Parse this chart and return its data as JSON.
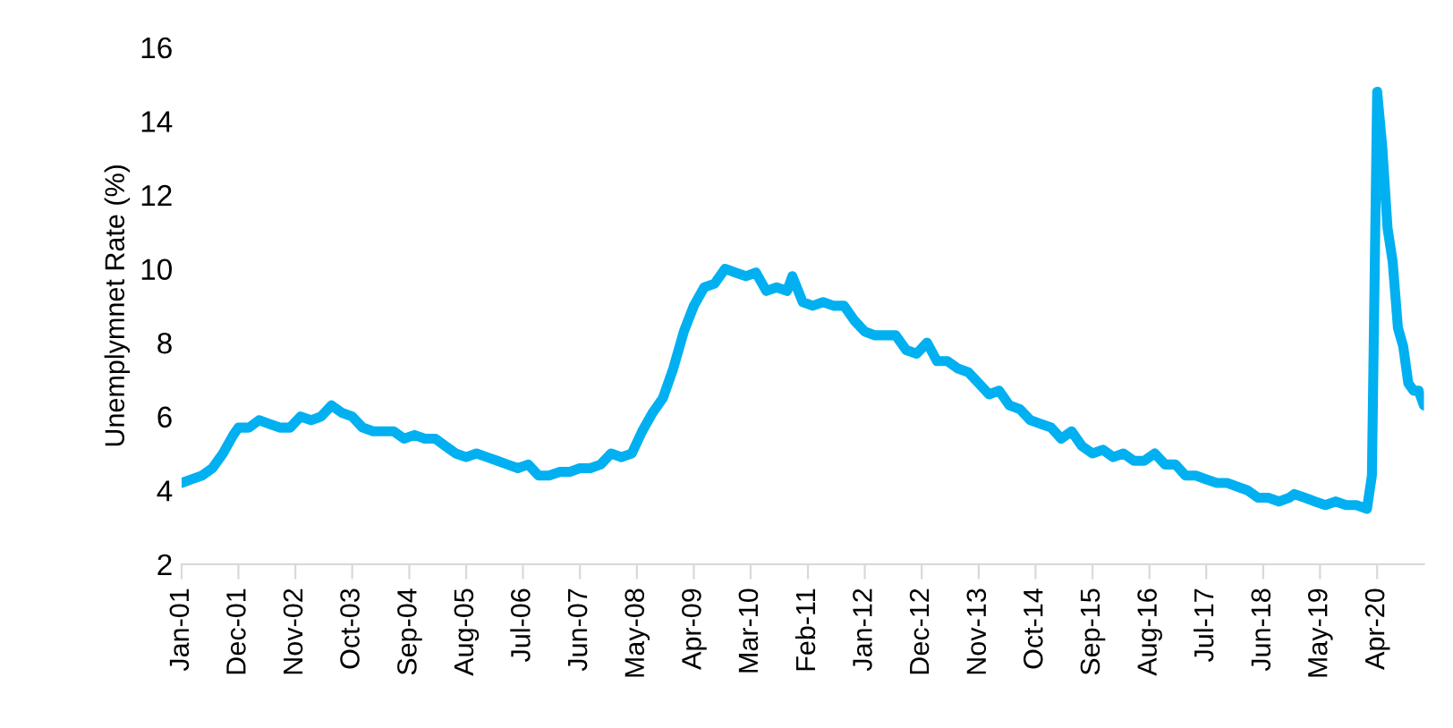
{
  "chart_data": {
    "type": "line",
    "ylabel": "Unemplymnet Rate (%)",
    "x": [
      "2001-01",
      "2001-03",
      "2001-05",
      "2001-07",
      "2001-09",
      "2001-11",
      "2001-12",
      "2002-02",
      "2002-04",
      "2002-06",
      "2002-08",
      "2002-10",
      "2002-12",
      "2003-02",
      "2003-04",
      "2003-06",
      "2003-08",
      "2003-10",
      "2003-12",
      "2004-02",
      "2004-04",
      "2004-06",
      "2004-08",
      "2004-10",
      "2004-12",
      "2005-02",
      "2005-04",
      "2005-06",
      "2005-08",
      "2005-10",
      "2005-12",
      "2006-02",
      "2006-04",
      "2006-06",
      "2006-08",
      "2006-10",
      "2006-12",
      "2007-02",
      "2007-04",
      "2007-06",
      "2007-08",
      "2007-10",
      "2007-12",
      "2008-02",
      "2008-04",
      "2008-06",
      "2008-08",
      "2008-10",
      "2008-12",
      "2009-02",
      "2009-04",
      "2009-06",
      "2009-08",
      "2009-10",
      "2009-12",
      "2010-02",
      "2010-04",
      "2010-06",
      "2010-08",
      "2010-10",
      "2010-11",
      "2011-01",
      "2011-03",
      "2011-05",
      "2011-07",
      "2011-09",
      "2011-11",
      "2012-01",
      "2012-03",
      "2012-05",
      "2012-07",
      "2012-09",
      "2012-11",
      "2013-01",
      "2013-03",
      "2013-05",
      "2013-07",
      "2013-09",
      "2013-11",
      "2014-01",
      "2014-03",
      "2014-05",
      "2014-07",
      "2014-09",
      "2014-11",
      "2015-01",
      "2015-03",
      "2015-05",
      "2015-07",
      "2015-09",
      "2015-11",
      "2016-01",
      "2016-03",
      "2016-05",
      "2016-07",
      "2016-09",
      "2016-11",
      "2017-01",
      "2017-03",
      "2017-05",
      "2017-07",
      "2017-09",
      "2017-11",
      "2018-01",
      "2018-03",
      "2018-05",
      "2018-07",
      "2018-09",
      "2018-11",
      "2018-12",
      "2019-02",
      "2019-04",
      "2019-06",
      "2019-08",
      "2019-10",
      "2019-12",
      "2020-02",
      "2020-03",
      "2020-04",
      "2020-05",
      "2020-06",
      "2020-07",
      "2020-08",
      "2020-09",
      "2020-10",
      "2020-11",
      "2020-12",
      "2021-01"
    ],
    "series": [
      {
        "color": "#00b0f0",
        "values": [
          4.2,
          4.3,
          4.4,
          4.6,
          5.0,
          5.5,
          5.7,
          5.7,
          5.9,
          5.8,
          5.7,
          5.7,
          6.0,
          5.9,
          6.0,
          6.3,
          6.1,
          6.0,
          5.7,
          5.6,
          5.6,
          5.6,
          5.4,
          5.5,
          5.4,
          5.4,
          5.2,
          5.0,
          4.9,
          5.0,
          4.9,
          4.8,
          4.7,
          4.6,
          4.7,
          4.4,
          4.4,
          4.5,
          4.5,
          4.6,
          4.6,
          4.7,
          5.0,
          4.9,
          5.0,
          5.6,
          6.1,
          6.5,
          7.3,
          8.3,
          9.0,
          9.5,
          9.6,
          10.0,
          9.9,
          9.8,
          9.9,
          9.4,
          9.5,
          9.4,
          9.8,
          9.1,
          9.0,
          9.1,
          9.0,
          9.0,
          8.6,
          8.3,
          8.2,
          8.2,
          8.2,
          7.8,
          7.7,
          8.0,
          7.5,
          7.5,
          7.3,
          7.2,
          6.9,
          6.6,
          6.7,
          6.3,
          6.2,
          5.9,
          5.8,
          5.7,
          5.4,
          5.6,
          5.2,
          5.0,
          5.1,
          4.9,
          5.0,
          4.8,
          4.8,
          5.0,
          4.7,
          4.7,
          4.4,
          4.4,
          4.3,
          4.2,
          4.2,
          4.1,
          4.0,
          3.8,
          3.8,
          3.7,
          3.8,
          3.9,
          3.8,
          3.7,
          3.6,
          3.7,
          3.6,
          3.6,
          3.5,
          4.4,
          14.8,
          13.3,
          11.1,
          10.2,
          8.4,
          7.9,
          6.9,
          6.7,
          6.7,
          6.3
        ]
      }
    ],
    "xlim": [
      "2001-01",
      "2021-01"
    ],
    "xticks": [
      {
        "value": "2001-01",
        "label": "Jan-01"
      },
      {
        "value": "2001-12",
        "label": "Dec-01"
      },
      {
        "value": "2002-11",
        "label": "Nov-02"
      },
      {
        "value": "2003-10",
        "label": "Oct-03"
      },
      {
        "value": "2004-09",
        "label": "Sep-04"
      },
      {
        "value": "2005-08",
        "label": "Aug-05"
      },
      {
        "value": "2006-07",
        "label": "Jul-06"
      },
      {
        "value": "2007-06",
        "label": "Jun-07"
      },
      {
        "value": "2008-05",
        "label": "May-08"
      },
      {
        "value": "2009-04",
        "label": "Apr-09"
      },
      {
        "value": "2010-03",
        "label": "Mar-10"
      },
      {
        "value": "2011-02",
        "label": "Feb-11"
      },
      {
        "value": "2012-01",
        "label": "Jan-12"
      },
      {
        "value": "2012-12",
        "label": "Dec-12"
      },
      {
        "value": "2013-11",
        "label": "Nov-13"
      },
      {
        "value": "2014-10",
        "label": "Oct-14"
      },
      {
        "value": "2015-09",
        "label": "Sep-15"
      },
      {
        "value": "2016-08",
        "label": "Aug-16"
      },
      {
        "value": "2017-07",
        "label": "Jul-17"
      },
      {
        "value": "2018-06",
        "label": "Jun-18"
      },
      {
        "value": "2019-05",
        "label": "May-19"
      },
      {
        "value": "2020-04",
        "label": "Apr-20"
      }
    ],
    "ylim": [
      2,
      16
    ],
    "yticks": [
      2,
      4,
      6,
      8,
      10,
      12,
      14,
      16
    ],
    "marker": "none",
    "line_style": "solid"
  }
}
